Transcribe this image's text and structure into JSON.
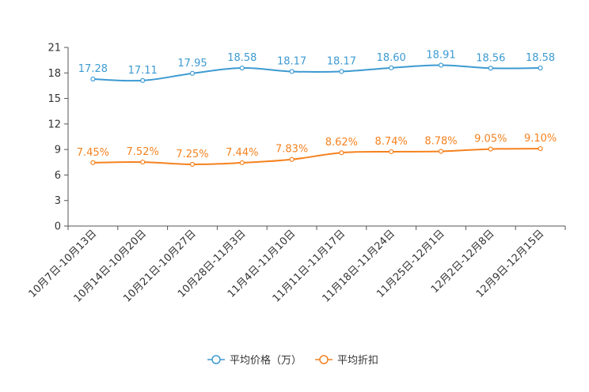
{
  "chart_data": {
    "type": "line",
    "categories": [
      "10月7日-10月13日",
      "10月14日-10月20日",
      "10月21日-10月27日",
      "10月28日-11月3日",
      "11月4日-11月10日",
      "11月11日-11月17日",
      "11月18日-11月24日",
      "11月25日-12月1日",
      "12月2日-12月8日",
      "12月9日-12月15日"
    ],
    "series": [
      {
        "name": "平均价格（万）",
        "values": [
          17.28,
          17.11,
          17.95,
          18.58,
          18.17,
          18.17,
          18.6,
          18.91,
          18.56,
          18.58
        ],
        "labels": [
          "17.28",
          "17.11",
          "17.95",
          "18.58",
          "18.17",
          "18.17",
          "18.60",
          "18.91",
          "18.56",
          "18.58"
        ],
        "color": "#3d9ad1"
      },
      {
        "name": "平均折扣",
        "values": [
          7.45,
          7.52,
          7.25,
          7.44,
          7.83,
          8.62,
          8.74,
          8.78,
          9.05,
          9.1
        ],
        "labels": [
          "7.45%",
          "7.52%",
          "7.25%",
          "7.44%",
          "7.83%",
          "8.62%",
          "8.74%",
          "8.78%",
          "9.05%",
          "9.10%"
        ],
        "color": "#f5821f"
      }
    ],
    "yticks": [
      "0",
      "3",
      "6",
      "9",
      "12",
      "15",
      "18",
      "21"
    ],
    "ylim": [
      0,
      21
    ],
    "title": "",
    "xlabel": "",
    "ylabel": "",
    "legend_position": "bottom-center"
  }
}
